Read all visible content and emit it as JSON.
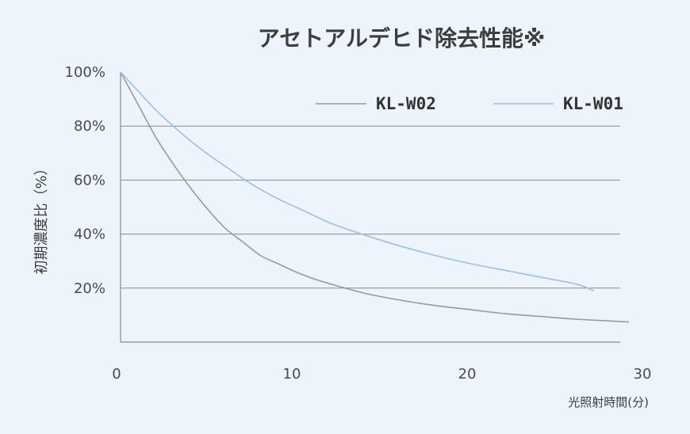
{
  "chart_data": {
    "type": "line",
    "title": "アセトアルデヒド除去性能※",
    "xlabel": "光照射時間(分)",
    "ylabel": "初期濃度比（%）",
    "xlim": [
      0,
      30
    ],
    "ylim": [
      0,
      100
    ],
    "x_ticks": [
      {
        "value": 0,
        "label": "0"
      },
      {
        "value": 10,
        "label": "10"
      },
      {
        "value": 20,
        "label": "20"
      },
      {
        "value": 30,
        "label": "30"
      }
    ],
    "y_ticks": [
      {
        "value": 100,
        "label": "100%"
      },
      {
        "value": 80,
        "label": "80%"
      },
      {
        "value": 60,
        "label": "60%"
      },
      {
        "value": 40,
        "label": "40%"
      },
      {
        "value": 20,
        "label": "20%"
      }
    ],
    "gridlines_y": [
      80,
      60,
      40,
      20
    ],
    "legend_position": "top-right",
    "series": [
      {
        "name": "KL-W02",
        "color": "#9a9a9a",
        "x": [
          0,
          1,
          2,
          3,
          4,
          5,
          6,
          7,
          8,
          9,
          10,
          11,
          12,
          14,
          16,
          18,
          20,
          22,
          24,
          26,
          28,
          29
        ],
        "y": [
          100,
          88,
          76,
          66,
          57,
          49,
          42,
          37,
          32,
          29,
          26,
          23.5,
          21.5,
          18,
          15.5,
          13.5,
          12,
          10.5,
          9.5,
          8.5,
          7.8,
          7.5
        ]
      },
      {
        "name": "KL-W01",
        "color": "#9dbfe0",
        "x": [
          0,
          1,
          2,
          3,
          4,
          5,
          6,
          7,
          8,
          9,
          10,
          11,
          12,
          14,
          16,
          18,
          20,
          22,
          24,
          26,
          27
        ],
        "y": [
          100,
          93,
          86,
          80,
          74.5,
          69.5,
          65,
          60.5,
          56.5,
          53,
          50,
          47,
          44,
          39.5,
          35.5,
          32,
          29,
          26.5,
          24,
          21.5,
          19
        ]
      }
    ]
  }
}
